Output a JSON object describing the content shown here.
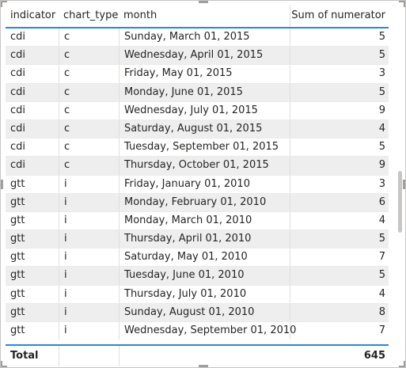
{
  "table": {
    "columns": [
      "indicator",
      "chart_type",
      "month",
      "Sum of numerator"
    ],
    "rows": [
      {
        "indicator": "cdi",
        "chart_type": "c",
        "month": "Sunday, March 01, 2015",
        "numerator": "5"
      },
      {
        "indicator": "cdi",
        "chart_type": "c",
        "month": "Wednesday, April 01, 2015",
        "numerator": "5"
      },
      {
        "indicator": "cdi",
        "chart_type": "c",
        "month": "Friday, May 01, 2015",
        "numerator": "3"
      },
      {
        "indicator": "cdi",
        "chart_type": "c",
        "month": "Monday, June 01, 2015",
        "numerator": "5"
      },
      {
        "indicator": "cdi",
        "chart_type": "c",
        "month": "Wednesday, July 01, 2015",
        "numerator": "9"
      },
      {
        "indicator": "cdi",
        "chart_type": "c",
        "month": "Saturday, August 01, 2015",
        "numerator": "4"
      },
      {
        "indicator": "cdi",
        "chart_type": "c",
        "month": "Tuesday, September 01, 2015",
        "numerator": "5"
      },
      {
        "indicator": "cdi",
        "chart_type": "c",
        "month": "Thursday, October 01, 2015",
        "numerator": "9"
      },
      {
        "indicator": "gtt",
        "chart_type": "i",
        "month": "Friday, January 01, 2010",
        "numerator": "3"
      },
      {
        "indicator": "gtt",
        "chart_type": "i",
        "month": "Monday, February 01, 2010",
        "numerator": "6"
      },
      {
        "indicator": "gtt",
        "chart_type": "i",
        "month": "Monday, March 01, 2010",
        "numerator": "4"
      },
      {
        "indicator": "gtt",
        "chart_type": "i",
        "month": "Thursday, April 01, 2010",
        "numerator": "5"
      },
      {
        "indicator": "gtt",
        "chart_type": "i",
        "month": "Saturday, May 01, 2010",
        "numerator": "7"
      },
      {
        "indicator": "gtt",
        "chart_type": "i",
        "month": "Tuesday, June 01, 2010",
        "numerator": "5"
      },
      {
        "indicator": "gtt",
        "chart_type": "i",
        "month": "Thursday, July 01, 2010",
        "numerator": "4"
      },
      {
        "indicator": "gtt",
        "chart_type": "i",
        "month": "Sunday, August 01, 2010",
        "numerator": "8"
      },
      {
        "indicator": "gtt",
        "chart_type": "i",
        "month": "Wednesday, September 01, 2010",
        "numerator": "7"
      }
    ],
    "total": {
      "label": "Total",
      "value": "645"
    }
  },
  "colors": {
    "accent": "#2b88d8",
    "row_alt": "#eeeeee",
    "text": "#252423"
  },
  "scroll": {
    "position_fraction": 0.6
  }
}
